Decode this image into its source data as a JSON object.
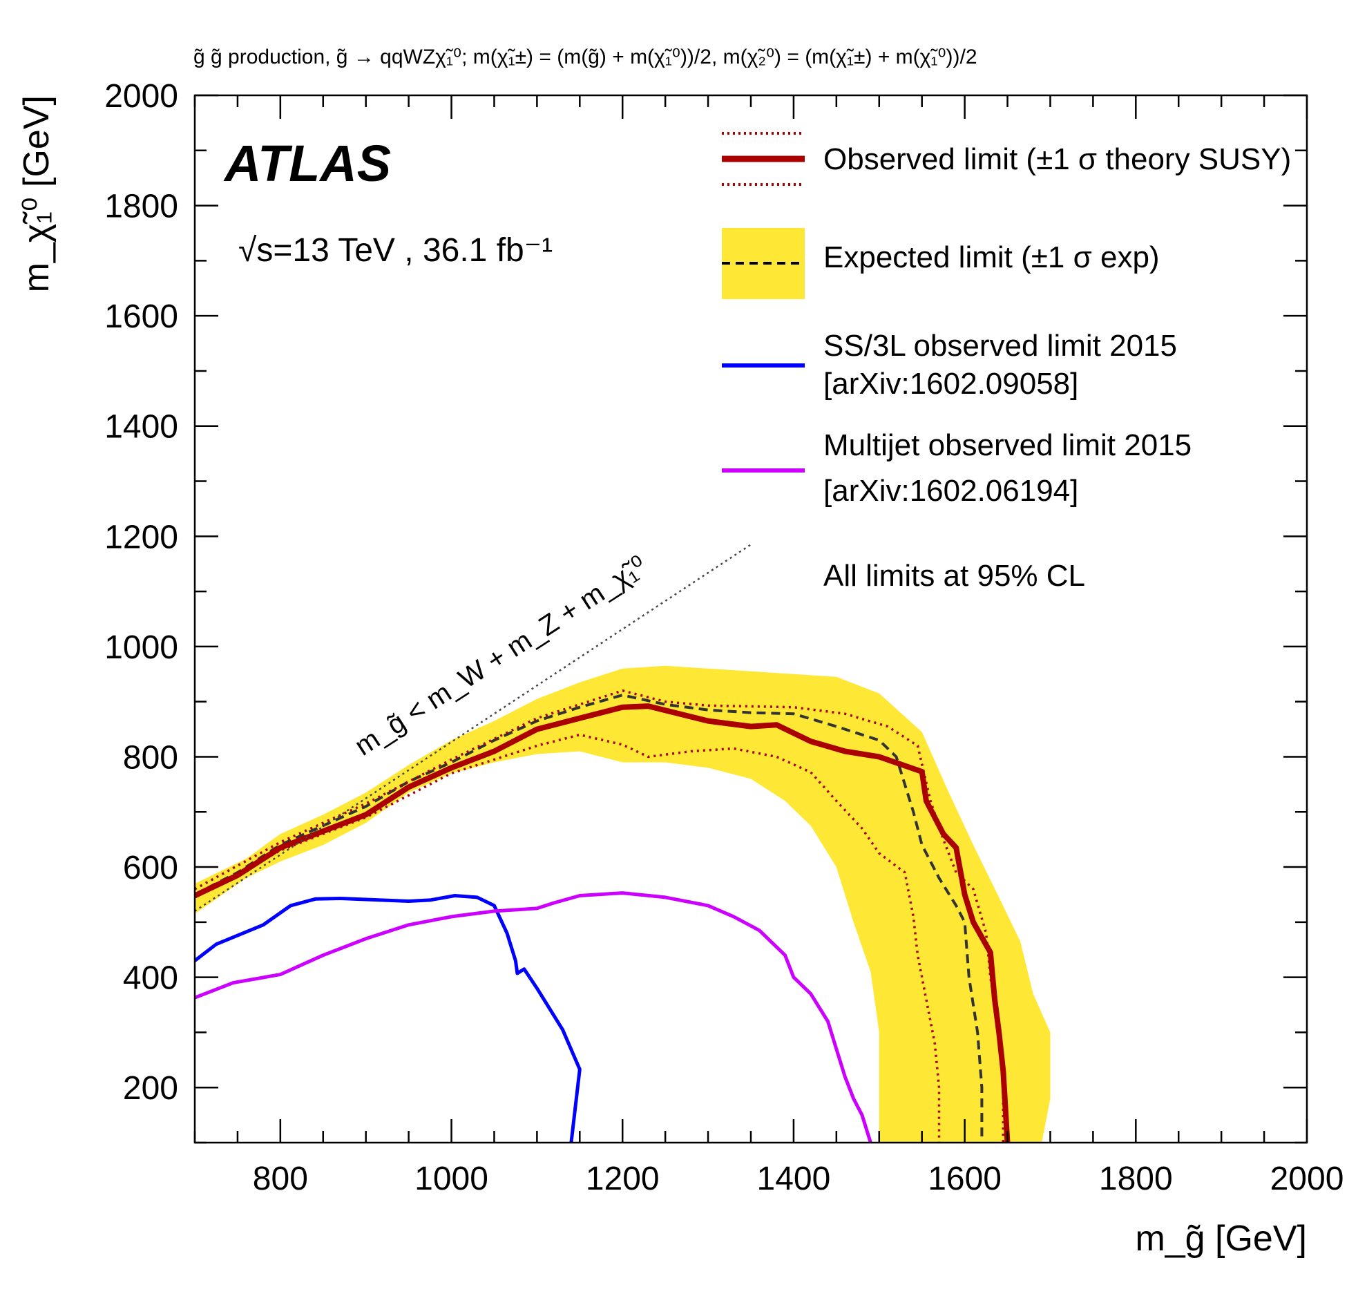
{
  "chart_data": {
    "type": "line",
    "title": "g̃ g̃ production, g̃ → qqWZχ̃₁⁰; m(χ̃₁±) = (m(g̃) + m(χ̃₁⁰))/2, m(χ̃₂⁰) = (m(χ̃₁±) + m(χ̃₁⁰))/2",
    "xlabel": "m_g̃ [GeV]",
    "ylabel": "m_χ̃₁⁰ [GeV]",
    "xlim": [
      700,
      2000
    ],
    "ylim": [
      100,
      2000
    ],
    "xticks": [
      800,
      1000,
      1200,
      1400,
      1600,
      1800,
      2000
    ],
    "yticks": [
      200,
      400,
      600,
      800,
      1000,
      1200,
      1400,
      1600,
      1800,
      2000
    ],
    "atlas_label": "ATLAS",
    "energy_label": "√s=13 TeV , 36.1 fb⁻¹",
    "kinematic_label": "m_g̃ < m_W + m_Z + m_χ̃₁⁰",
    "legend": {
      "observed": "Observed limit (±1 σ theory SUSY)",
      "expected": "Expected limit (±1 σ exp)",
      "ss3l_line1": "SS/3L observed limit 2015",
      "ss3l_line2": "[arXiv:1602.09058]",
      "multijet_line1": "Multijet observed limit 2015",
      "multijet_line2": "[arXiv:1602.06194]",
      "cl_note": "All limits at 95% CL"
    },
    "colors": {
      "observed": "#aa0000",
      "expected_band": "#ffe835",
      "expected_line": "#333333",
      "ss3l": "#0000ff",
      "multijet": "#cc00ff",
      "kinematic": "#444444"
    },
    "series": [
      {
        "name": "Expected band",
        "style": "band",
        "upper": [
          [
            700,
            570
          ],
          [
            760,
            615
          ],
          [
            800,
            660
          ],
          [
            850,
            695
          ],
          [
            900,
            735
          ],
          [
            950,
            785
          ],
          [
            1000,
            830
          ],
          [
            1050,
            865
          ],
          [
            1100,
            905
          ],
          [
            1150,
            935
          ],
          [
            1200,
            960
          ],
          [
            1250,
            965
          ],
          [
            1300,
            960
          ],
          [
            1350,
            955
          ],
          [
            1400,
            950
          ],
          [
            1450,
            945
          ],
          [
            1500,
            915
          ],
          [
            1550,
            845
          ],
          [
            1580,
            740
          ],
          [
            1610,
            640
          ],
          [
            1640,
            545
          ],
          [
            1665,
            465
          ],
          [
            1680,
            370
          ],
          [
            1700,
            300
          ],
          [
            1700,
            180
          ],
          [
            1690,
            100
          ]
        ],
        "lower": [
          [
            1500,
            100
          ],
          [
            1500,
            200
          ],
          [
            1500,
            300
          ],
          [
            1490,
            410
          ],
          [
            1470,
            500
          ],
          [
            1450,
            600
          ],
          [
            1420,
            675
          ],
          [
            1390,
            720
          ],
          [
            1350,
            760
          ],
          [
            1300,
            780
          ],
          [
            1250,
            790
          ],
          [
            1200,
            790
          ],
          [
            1150,
            810
          ],
          [
            1100,
            805
          ],
          [
            1050,
            790
          ],
          [
            1000,
            770
          ],
          [
            950,
            735
          ],
          [
            900,
            680
          ],
          [
            850,
            640
          ],
          [
            800,
            610
          ],
          [
            760,
            580
          ],
          [
            700,
            515
          ]
        ]
      },
      {
        "name": "Expected limit",
        "style": "dashed",
        "points": [
          [
            700,
            550
          ],
          [
            750,
            590
          ],
          [
            800,
            640
          ],
          [
            850,
            675
          ],
          [
            900,
            710
          ],
          [
            950,
            755
          ],
          [
            1000,
            790
          ],
          [
            1050,
            830
          ],
          [
            1100,
            865
          ],
          [
            1150,
            890
          ],
          [
            1200,
            912
          ],
          [
            1250,
            895
          ],
          [
            1300,
            885
          ],
          [
            1350,
            880
          ],
          [
            1400,
            878
          ],
          [
            1450,
            855
          ],
          [
            1500,
            830
          ],
          [
            1520,
            800
          ],
          [
            1530,
            750
          ],
          [
            1540,
            700
          ],
          [
            1550,
            640
          ],
          [
            1570,
            580
          ],
          [
            1590,
            530
          ],
          [
            1600,
            500
          ],
          [
            1605,
            400
          ],
          [
            1615,
            300
          ],
          [
            1620,
            200
          ],
          [
            1620,
            100
          ]
        ]
      },
      {
        "name": "Observed +1σ theory",
        "style": "dotted",
        "points": [
          [
            700,
            560
          ],
          [
            800,
            645
          ],
          [
            900,
            715
          ],
          [
            1000,
            795
          ],
          [
            1100,
            870
          ],
          [
            1200,
            920
          ],
          [
            1250,
            900
          ],
          [
            1300,
            893
          ],
          [
            1400,
            890
          ],
          [
            1460,
            878
          ],
          [
            1510,
            855
          ],
          [
            1545,
            820
          ],
          [
            1560,
            720
          ],
          [
            1575,
            650
          ],
          [
            1590,
            590
          ],
          [
            1610,
            560
          ],
          [
            1625,
            480
          ],
          [
            1630,
            400
          ],
          [
            1640,
            300
          ],
          [
            1645,
            200
          ],
          [
            1645,
            100
          ]
        ]
      },
      {
        "name": "Observed limit",
        "style": "solid",
        "points": [
          [
            700,
            548
          ],
          [
            750,
            585
          ],
          [
            800,
            635
          ],
          [
            850,
            665
          ],
          [
            900,
            695
          ],
          [
            950,
            745
          ],
          [
            1000,
            780
          ],
          [
            1050,
            810
          ],
          [
            1100,
            850
          ],
          [
            1150,
            870
          ],
          [
            1200,
            890
          ],
          [
            1230,
            892
          ],
          [
            1300,
            865
          ],
          [
            1350,
            855
          ],
          [
            1380,
            858
          ],
          [
            1420,
            828
          ],
          [
            1460,
            810
          ],
          [
            1500,
            800
          ],
          [
            1550,
            773
          ],
          [
            1555,
            720
          ],
          [
            1575,
            660
          ],
          [
            1590,
            635
          ],
          [
            1600,
            550
          ],
          [
            1610,
            500
          ],
          [
            1630,
            445
          ],
          [
            1635,
            360
          ],
          [
            1640,
            300
          ],
          [
            1645,
            230
          ],
          [
            1650,
            100
          ]
        ]
      },
      {
        "name": "Observed -1σ theory",
        "style": "dotted",
        "points": [
          [
            700,
            545
          ],
          [
            800,
            630
          ],
          [
            900,
            690
          ],
          [
            1000,
            770
          ],
          [
            1050,
            795
          ],
          [
            1100,
            820
          ],
          [
            1150,
            840
          ],
          [
            1200,
            822
          ],
          [
            1230,
            800
          ],
          [
            1280,
            810
          ],
          [
            1330,
            815
          ],
          [
            1380,
            800
          ],
          [
            1420,
            772
          ],
          [
            1450,
            720
          ],
          [
            1480,
            670
          ],
          [
            1500,
            625
          ],
          [
            1530,
            590
          ],
          [
            1540,
            510
          ],
          [
            1545,
            440
          ],
          [
            1555,
            360
          ],
          [
            1565,
            280
          ],
          [
            1570,
            200
          ],
          [
            1570,
            100
          ]
        ]
      },
      {
        "name": "SS/3L observed limit 2015",
        "style": "solid",
        "points": [
          [
            700,
            430
          ],
          [
            725,
            460
          ],
          [
            780,
            495
          ],
          [
            812,
            530
          ],
          [
            841,
            542
          ],
          [
            870,
            543
          ],
          [
            950,
            538
          ],
          [
            975,
            540
          ],
          [
            1004,
            548
          ],
          [
            1030,
            545
          ],
          [
            1050,
            530
          ],
          [
            1065,
            480
          ],
          [
            1075,
            430
          ],
          [
            1077,
            407
          ],
          [
            1085,
            415
          ],
          [
            1100,
            380
          ],
          [
            1130,
            305
          ],
          [
            1150,
            233
          ],
          [
            1140,
            100
          ]
        ]
      },
      {
        "name": "Multijet observed limit 2015",
        "style": "solid",
        "points": [
          [
            700,
            363
          ],
          [
            745,
            390
          ],
          [
            800,
            405
          ],
          [
            850,
            440
          ],
          [
            900,
            470
          ],
          [
            950,
            495
          ],
          [
            1000,
            510
          ],
          [
            1050,
            520
          ],
          [
            1100,
            525
          ],
          [
            1120,
            535
          ],
          [
            1150,
            548
          ],
          [
            1200,
            553
          ],
          [
            1250,
            545
          ],
          [
            1300,
            530
          ],
          [
            1330,
            510
          ],
          [
            1360,
            485
          ],
          [
            1390,
            440
          ],
          [
            1400,
            400
          ],
          [
            1420,
            370
          ],
          [
            1440,
            320
          ],
          [
            1450,
            270
          ],
          [
            1460,
            220
          ],
          [
            1470,
            180
          ],
          [
            1480,
            150
          ],
          [
            1490,
            100
          ]
        ]
      },
      {
        "name": "Kinematic limit",
        "style": "dotted",
        "points": [
          [
            700,
            520
          ],
          [
            1350,
            1185
          ]
        ]
      }
    ]
  }
}
